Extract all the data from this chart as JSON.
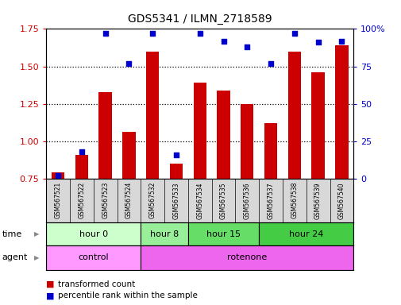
{
  "title": "GDS5341 / ILMN_2718589",
  "samples": [
    "GSM567521",
    "GSM567522",
    "GSM567523",
    "GSM567524",
    "GSM567532",
    "GSM567533",
    "GSM567534",
    "GSM567535",
    "GSM567536",
    "GSM567537",
    "GSM567538",
    "GSM567539",
    "GSM567540"
  ],
  "transformed_counts": [
    0.79,
    0.91,
    1.33,
    1.06,
    1.6,
    0.85,
    1.39,
    1.34,
    1.25,
    1.12,
    1.6,
    1.46,
    1.64
  ],
  "percentile_ranks": [
    2,
    18,
    97,
    77,
    97,
    16,
    97,
    92,
    88,
    77,
    97,
    91,
    92
  ],
  "ylim_left": [
    0.75,
    1.75
  ],
  "ylim_right": [
    0,
    100
  ],
  "yticks_left": [
    0.75,
    1.0,
    1.25,
    1.5,
    1.75
  ],
  "yticks_right": [
    0,
    25,
    50,
    75,
    100
  ],
  "bar_color": "#cc0000",
  "dot_color": "#0000cc",
  "time_groups": [
    {
      "label": "hour 0",
      "start": 0,
      "end": 4,
      "color": "#ccffcc"
    },
    {
      "label": "hour 8",
      "start": 4,
      "end": 6,
      "color": "#99ee99"
    },
    {
      "label": "hour 15",
      "start": 6,
      "end": 9,
      "color": "#66dd66"
    },
    {
      "label": "hour 24",
      "start": 9,
      "end": 13,
      "color": "#44cc44"
    }
  ],
  "agent_groups": [
    {
      "label": "control",
      "start": 0,
      "end": 4,
      "color": "#ff99ff"
    },
    {
      "label": "rotenone",
      "start": 4,
      "end": 13,
      "color": "#ee66ee"
    }
  ],
  "legend_bar_label": "transformed count",
  "legend_dot_label": "percentile rank within the sample",
  "background_color": "#ffffff",
  "plot_bg_color": "#ffffff",
  "tick_color_left": "#cc0000",
  "tick_color_right": "#0000cc",
  "baseline": 0.75
}
